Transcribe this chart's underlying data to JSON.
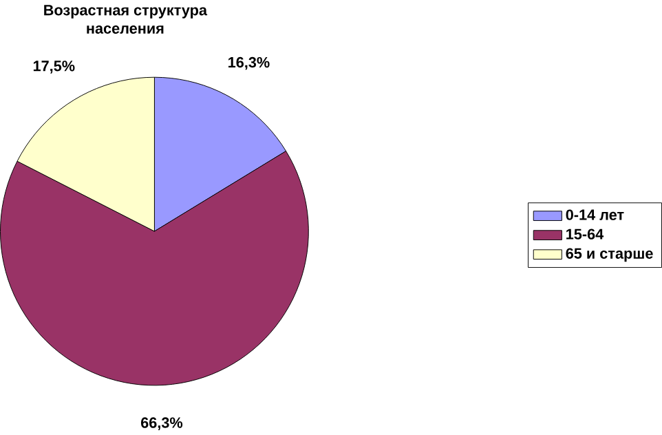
{
  "chart_data": {
    "type": "pie",
    "title": "Возрастная структура населения",
    "categories": [
      "0-14 лет",
      "15-64",
      "65 и старше"
    ],
    "values": [
      16.3,
      66.3,
      17.5
    ],
    "value_labels": [
      "16,3%",
      "66,3%",
      "17,5%"
    ],
    "colors": [
      "#9999ff",
      "#993366",
      "#ffffcc"
    ],
    "legend": "right"
  }
}
